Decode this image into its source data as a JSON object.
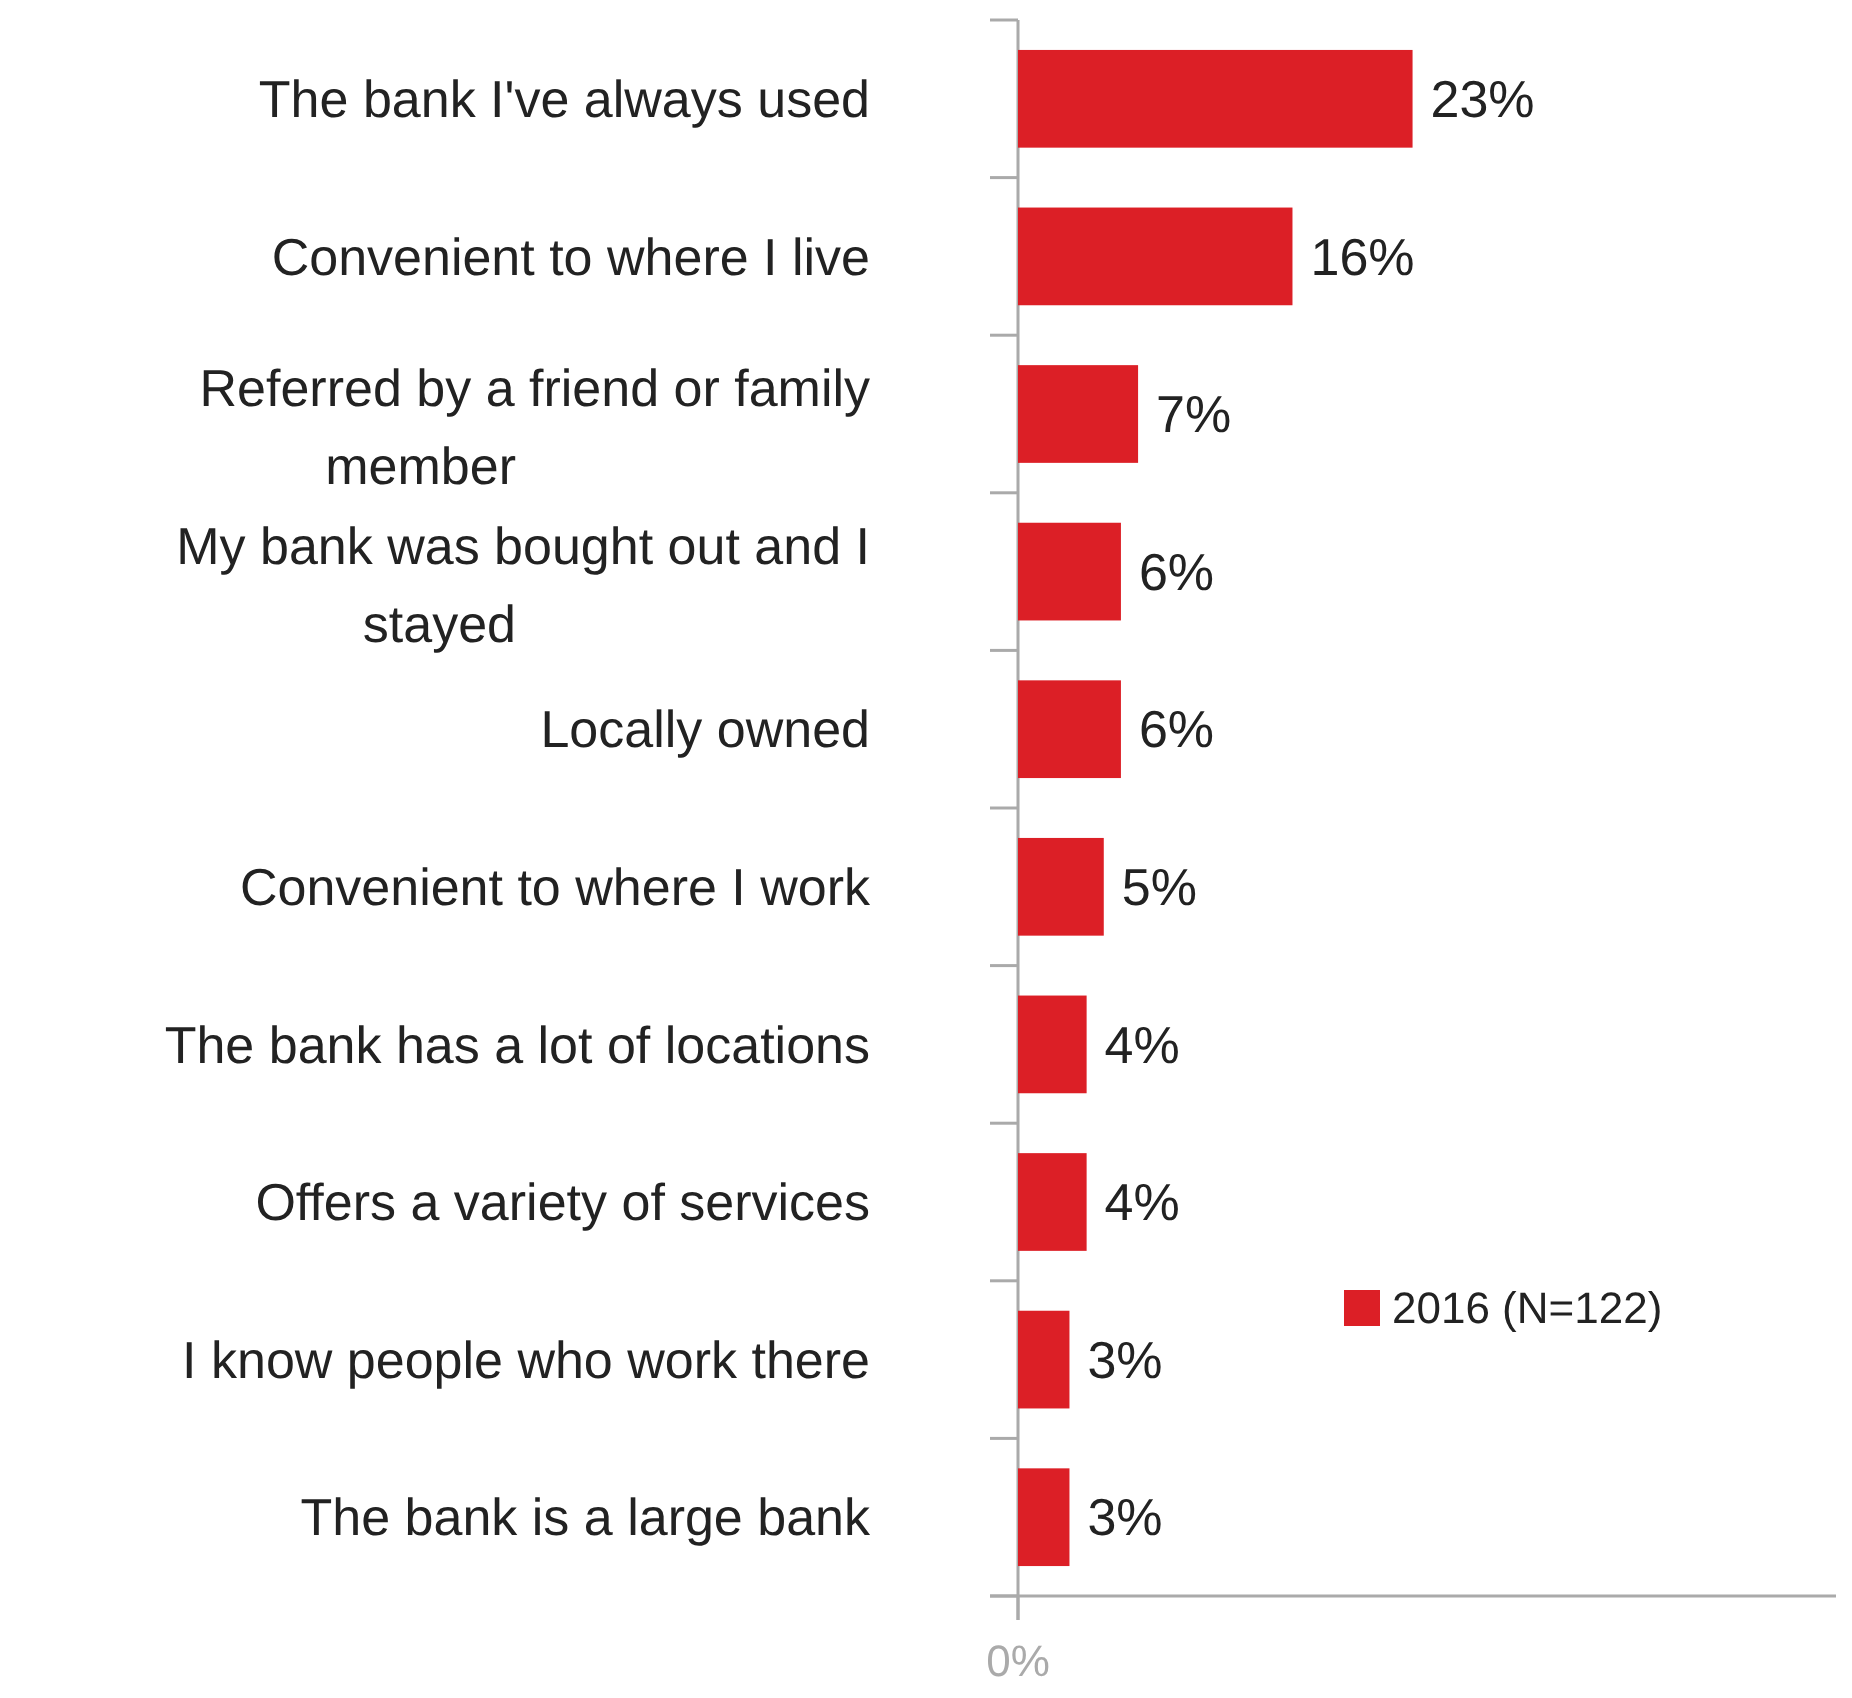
{
  "chart_data": {
    "type": "bar",
    "orientation": "horizontal",
    "categories": [
      "The bank I've always used",
      "Convenient to where I live",
      "Referred by a friend or family member",
      "My bank was bought out and I stayed",
      "Locally owned",
      "Convenient to where I work",
      "The bank has a lot of locations",
      "Offers a variety of services",
      "I know people who work there",
      "The bank is a large bank"
    ],
    "series": [
      {
        "name": "2016 (N=122)",
        "color": "#dc1f26",
        "values": [
          23,
          16,
          7,
          6,
          6,
          5,
          4,
          4,
          3,
          3
        ],
        "value_labels": [
          "23%",
          "16%",
          "7%",
          "6%",
          "6%",
          "5%",
          "4%",
          "4%",
          "3%",
          "3%"
        ]
      }
    ],
    "annotations": [
      "0%"
    ],
    "legend": "right"
  }
}
